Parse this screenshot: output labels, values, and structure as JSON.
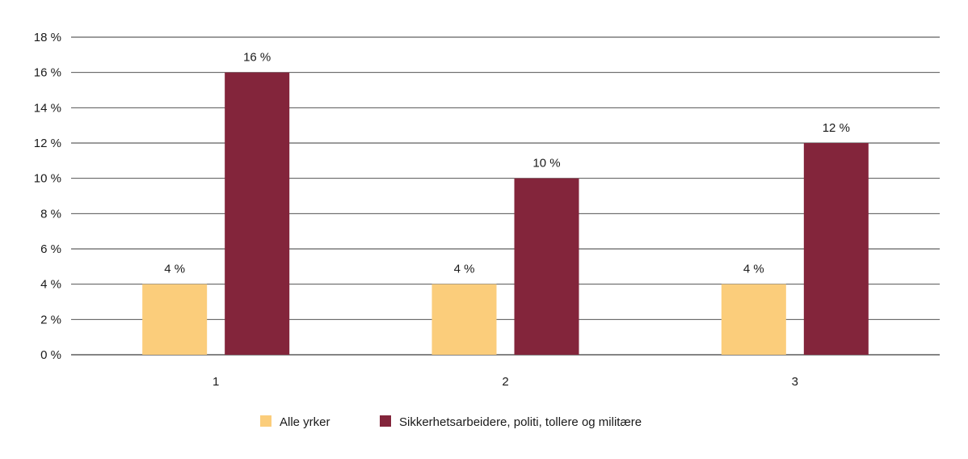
{
  "chart_data": {
    "type": "bar",
    "title": "",
    "xlabel": "",
    "ylabel": "",
    "categories": [
      "1",
      "2",
      "3"
    ],
    "series": [
      {
        "name": "Alle yrker",
        "color": "#fbcd7b",
        "values": [
          4,
          4,
          4
        ],
        "labels": [
          "4 %",
          "4 %",
          "4 %"
        ]
      },
      {
        "name": "Sikkerhetsarbeidere, politi, tollere og militære",
        "color": "#83253b",
        "values": [
          16,
          10,
          12
        ],
        "labels": [
          "16 %",
          "10 %",
          "12 %"
        ]
      }
    ],
    "ylim": [
      0,
      18
    ],
    "yticks": [
      0,
      2,
      4,
      6,
      8,
      10,
      12,
      14,
      16,
      18
    ],
    "ytick_labels": [
      "0 %",
      "2 %",
      "4 %",
      "6 %",
      "8 %",
      "10 %",
      "12 %",
      "14 %",
      "16 %",
      "18 %"
    ],
    "grid": true,
    "legend_position": "bottom-center",
    "gridline_color": "#3a3a3a"
  }
}
